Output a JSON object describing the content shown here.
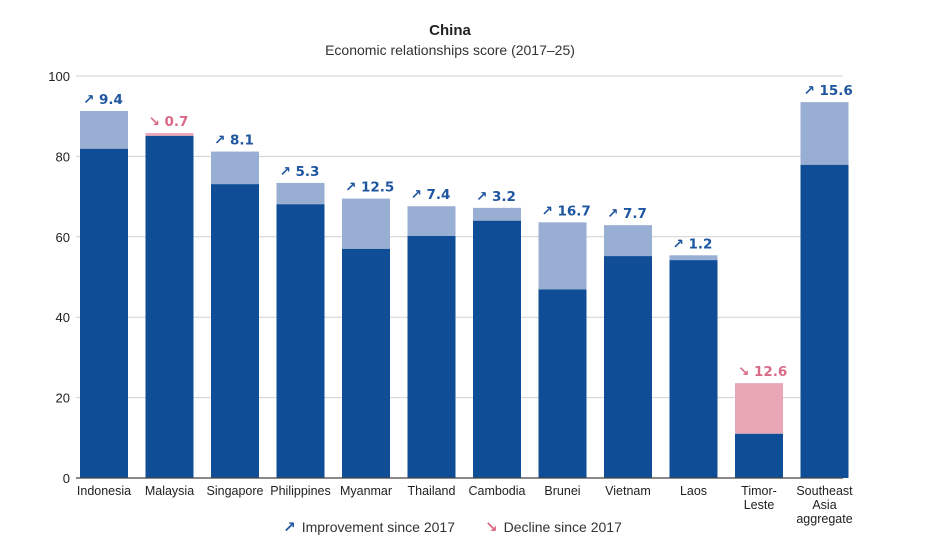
{
  "chart_data": {
    "type": "bar",
    "title": "China",
    "subtitle": "Economic relationships score (2017–25)",
    "ylim": [
      0,
      100
    ],
    "yticks": [
      0,
      20,
      40,
      60,
      80,
      100
    ],
    "grid": true,
    "categories": [
      "Indonesia",
      "Malaysia",
      "Singapore",
      "Philippines",
      "Myanmar",
      "Thailand",
      "Cambodia",
      "Brunei",
      "Vietnam",
      "Laos",
      "Timor-Leste",
      "Southeast Asia aggregate"
    ],
    "category_lines": [
      [
        "Indonesia"
      ],
      [
        "Malaysia"
      ],
      [
        "Singapore"
      ],
      [
        "Philippines"
      ],
      [
        "Myanmar"
      ],
      [
        "Thailand"
      ],
      [
        "Cambodia"
      ],
      [
        "Brunei"
      ],
      [
        "Vietnam"
      ],
      [
        "Laos"
      ],
      [
        "Timor-",
        "Leste"
      ],
      [
        "Southeast",
        "Asia",
        "aggregate"
      ]
    ],
    "base_values": [
      81.9,
      85.1,
      73.1,
      68.1,
      57.0,
      60.2,
      64.0,
      46.9,
      55.2,
      54.2,
      11.0,
      77.9
    ],
    "final_values": [
      91.3,
      85.8,
      81.2,
      73.4,
      69.5,
      67.6,
      67.2,
      63.6,
      62.9,
      55.4,
      23.6,
      93.5
    ],
    "changes": [
      9.4,
      0.7,
      8.1,
      5.3,
      12.5,
      7.4,
      3.2,
      16.7,
      7.7,
      1.2,
      12.6,
      15.6
    ],
    "direction": [
      "up",
      "down",
      "up",
      "up",
      "up",
      "up",
      "up",
      "up",
      "up",
      "up",
      "down",
      "up"
    ],
    "change_labels": [
      "↗ 9.4",
      "↘ 0.7",
      "↗ 8.1",
      "↗ 5.3",
      "↗ 12.5",
      "↗ 7.4",
      "↗ 3.2",
      "↗ 16.7",
      "↗ 7.7",
      "↗ 1.2",
      "↘ 12.6",
      "↗ 15.6"
    ],
    "colors": {
      "base": "#0f4e96",
      "improvement": "#98aed3",
      "decline": "#e9a7b5",
      "improvement_text": "#1f56a0",
      "decline_text": "#d96b86",
      "grid": "#d0d0d0",
      "axis": "#444444"
    }
  },
  "legend": {
    "improvement": {
      "arrow": "↗",
      "label": "Improvement since 2017"
    },
    "decline": {
      "arrow": "↘",
      "label": "Decline since 2017"
    }
  }
}
